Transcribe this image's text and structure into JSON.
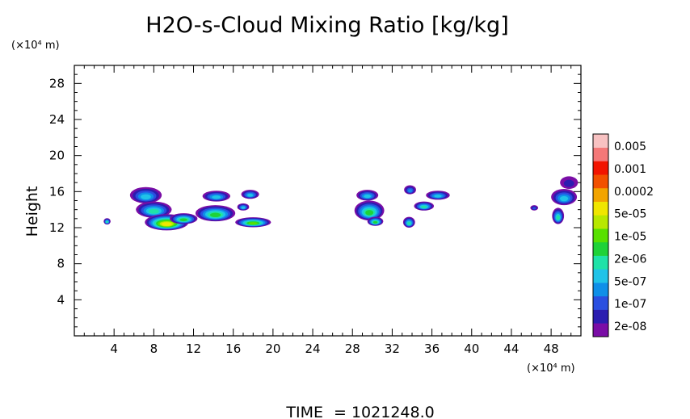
{
  "chart_data": {
    "type": "heatmap",
    "title": "H2O-s-Cloud Mixing Ratio [kg/kg]",
    "ylabel": "Height",
    "y_unit": "(×10⁴ m)",
    "x_unit": "(×10⁴ m)",
    "xlim": [
      0,
      51
    ],
    "ylim": [
      0,
      30
    ],
    "x_ticks": [
      4,
      8,
      12,
      16,
      20,
      24,
      28,
      32,
      36,
      40,
      44,
      48
    ],
    "y_ticks": [
      4,
      8,
      12,
      16,
      20,
      24,
      28
    ],
    "time_label": "TIME",
    "time_value": "= 1021248.0",
    "colorbar": {
      "colors": [
        "#7a0da6",
        "#2b1db0",
        "#2a4fe0",
        "#0f8fe8",
        "#20c3e8",
        "#1fe2a8",
        "#1fd238",
        "#58e000",
        "#b8e800",
        "#f0e600",
        "#f2a400",
        "#f25000",
        "#f21400",
        "#f47878",
        "#f8c2c2"
      ],
      "labels": [
        "2e-08",
        "1e-07",
        "5e-07",
        "2e-06",
        "1e-05",
        "5e-05",
        "0.0002",
        "0.001",
        "0.005"
      ]
    },
    "clouds": [
      {
        "x": 3.3,
        "y": 12.7,
        "rx": 0.35,
        "ry": 0.35,
        "peak": 6
      },
      {
        "x": 7.2,
        "y": 15.6,
        "rx": 1.6,
        "ry": 0.9,
        "peak": 5
      },
      {
        "x": 8.0,
        "y": 14.0,
        "rx": 1.8,
        "ry": 0.9,
        "peak": 6
      },
      {
        "x": 9.3,
        "y": 12.6,
        "rx": 2.2,
        "ry": 0.9,
        "peak": 10
      },
      {
        "x": 11.0,
        "y": 13.0,
        "rx": 1.4,
        "ry": 0.6,
        "peak": 7
      },
      {
        "x": 14.3,
        "y": 15.5,
        "rx": 1.4,
        "ry": 0.6,
        "peak": 5
      },
      {
        "x": 14.2,
        "y": 13.6,
        "rx": 2.0,
        "ry": 0.9,
        "peak": 7
      },
      {
        "x": 17.7,
        "y": 15.7,
        "rx": 0.9,
        "ry": 0.5,
        "peak": 5
      },
      {
        "x": 17.0,
        "y": 14.3,
        "rx": 0.6,
        "ry": 0.4,
        "peak": 5
      },
      {
        "x": 18.0,
        "y": 12.6,
        "rx": 1.8,
        "ry": 0.55,
        "peak": 8
      },
      {
        "x": 29.5,
        "y": 15.6,
        "rx": 1.1,
        "ry": 0.6,
        "peak": 5
      },
      {
        "x": 29.7,
        "y": 13.9,
        "rx": 1.5,
        "ry": 1.1,
        "peak": 7
      },
      {
        "x": 30.3,
        "y": 12.7,
        "rx": 0.8,
        "ry": 0.5,
        "peak": 7
      },
      {
        "x": 33.8,
        "y": 16.2,
        "rx": 0.6,
        "ry": 0.5,
        "peak": 4
      },
      {
        "x": 36.6,
        "y": 15.6,
        "rx": 1.2,
        "ry": 0.5,
        "peak": 5
      },
      {
        "x": 35.2,
        "y": 14.4,
        "rx": 1.0,
        "ry": 0.5,
        "peak": 6
      },
      {
        "x": 33.7,
        "y": 12.6,
        "rx": 0.6,
        "ry": 0.6,
        "peak": 6
      },
      {
        "x": 46.3,
        "y": 14.2,
        "rx": 0.4,
        "ry": 0.3,
        "peak": 3
      },
      {
        "x": 49.8,
        "y": 17.0,
        "rx": 0.9,
        "ry": 0.7,
        "peak": 2
      },
      {
        "x": 49.3,
        "y": 15.4,
        "rx": 1.3,
        "ry": 0.9,
        "peak": 5
      },
      {
        "x": 48.7,
        "y": 13.3,
        "rx": 0.6,
        "ry": 0.9,
        "peak": 6
      }
    ]
  }
}
